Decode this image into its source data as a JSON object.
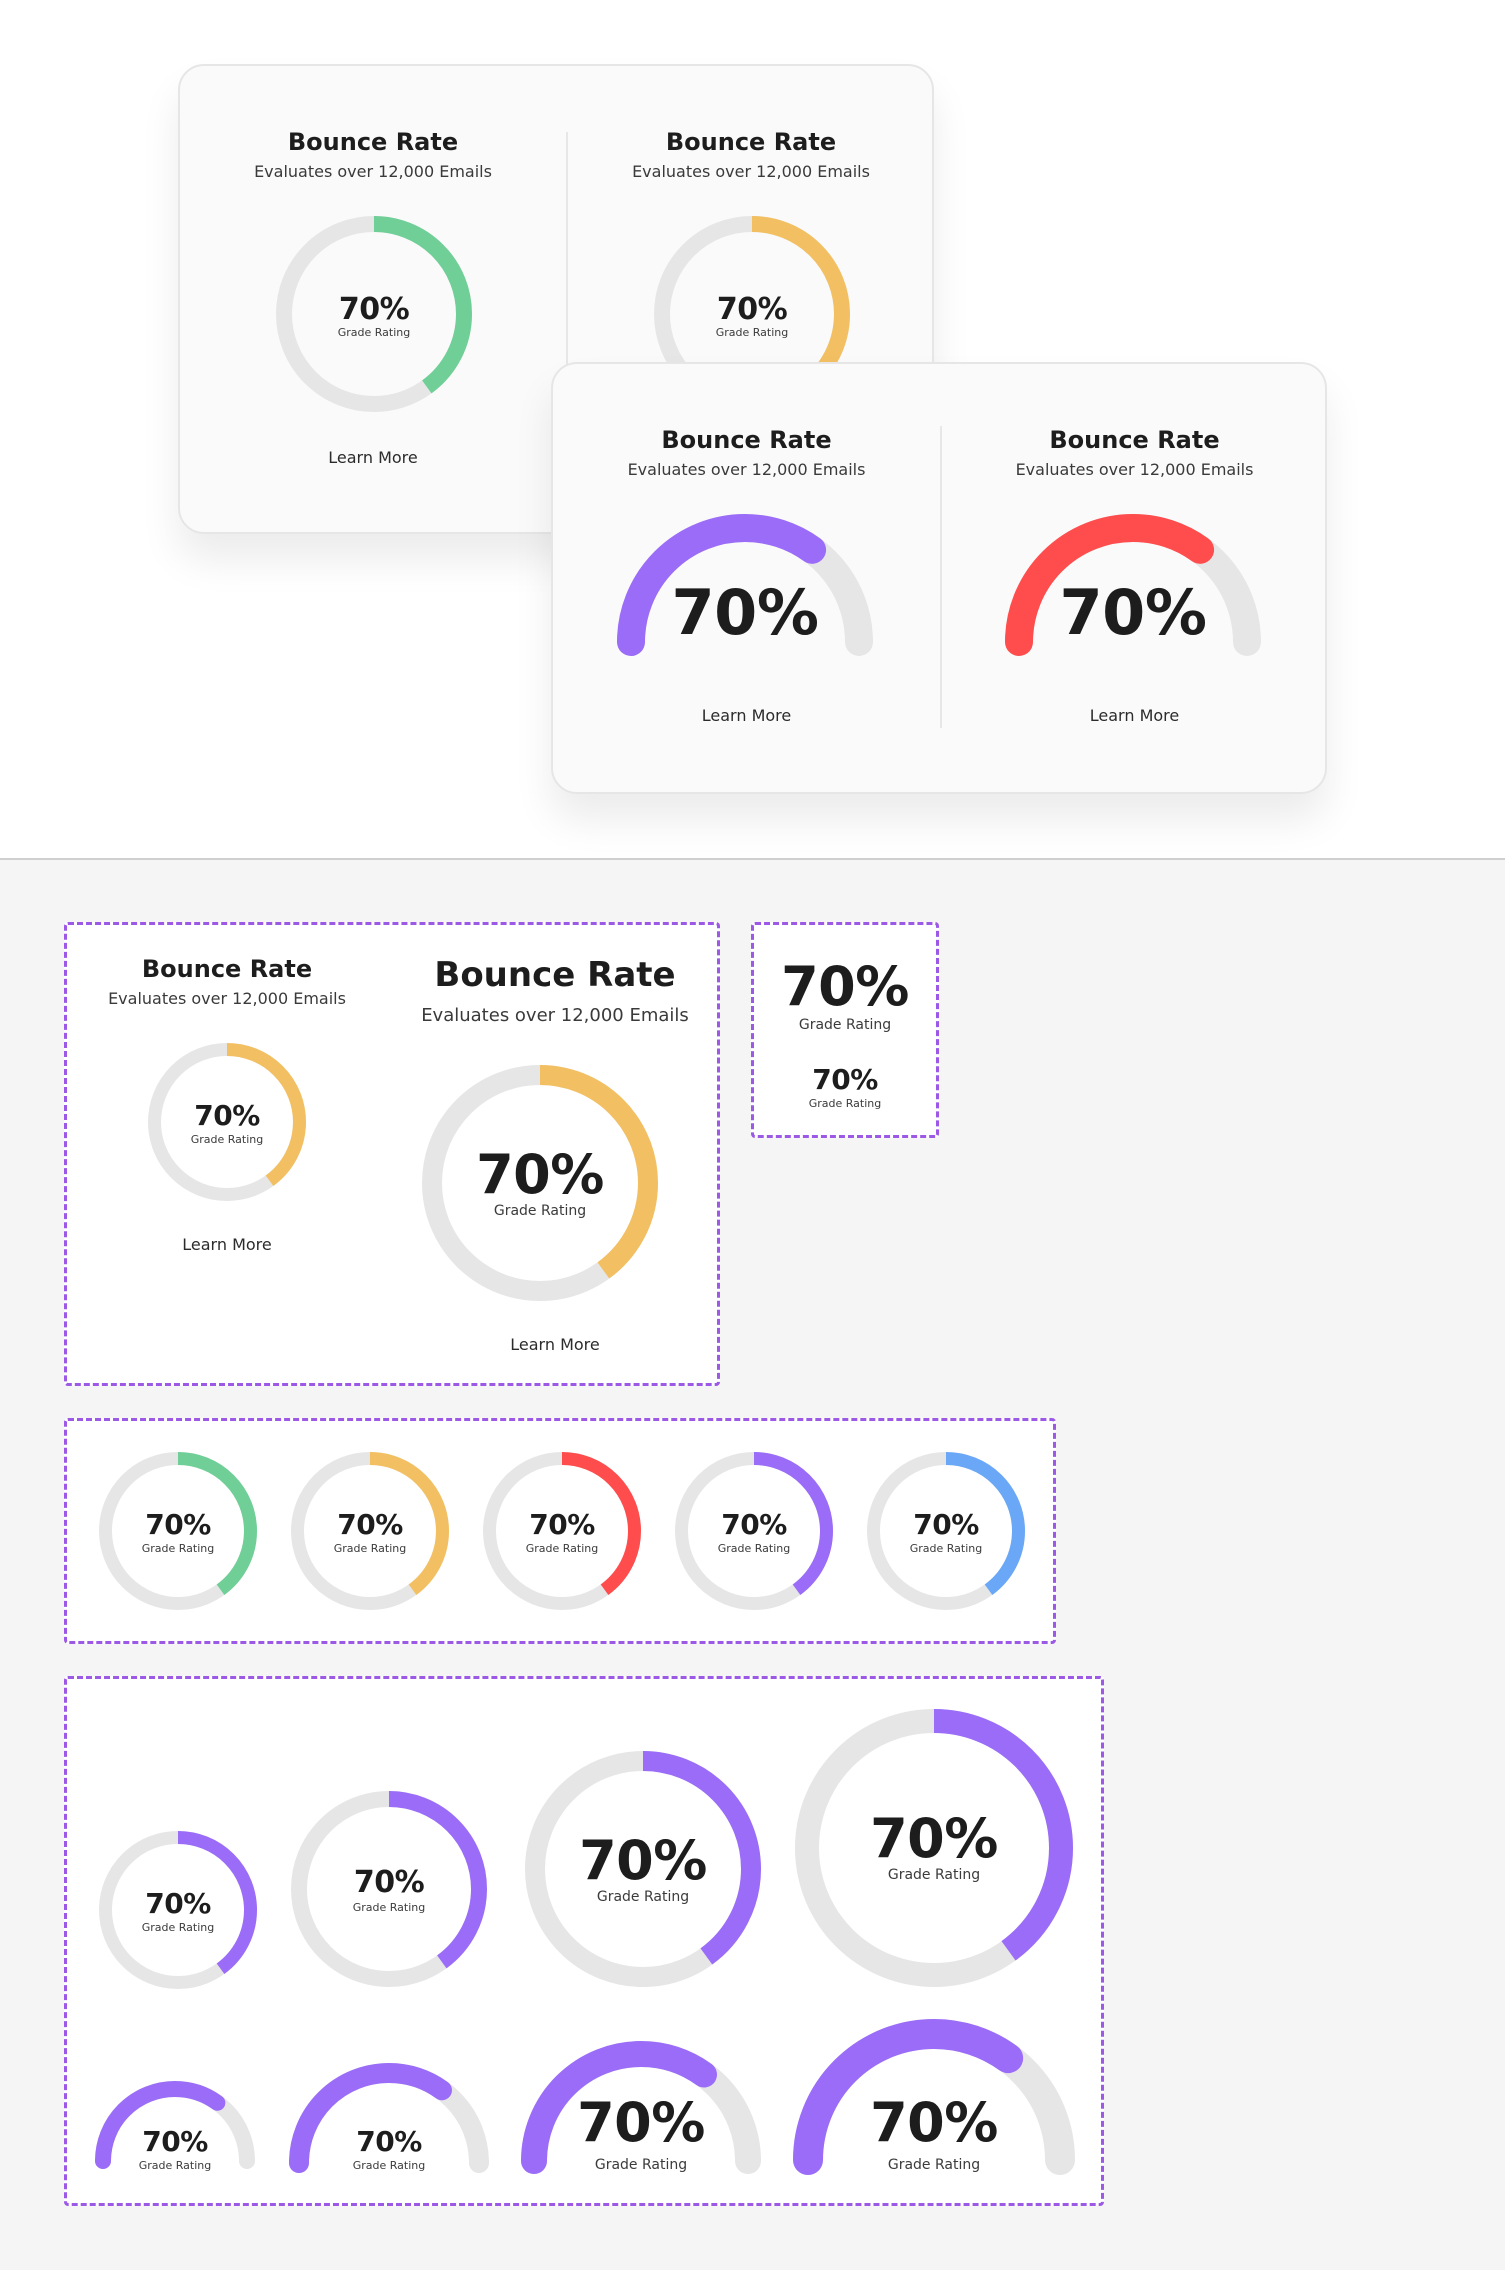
{
  "colors": {
    "track": "#e6e6e6",
    "green": "#6fcf97",
    "yellow": "#f2c063",
    "red": "#ff4d4d",
    "purple": "#9b6cf8",
    "blue": "#6aa8f7",
    "frame": "#9b59e6"
  },
  "card_top": {
    "left": {
      "title": "Bounce Rate",
      "subtitle": "Evaluates over 12,000 Emails",
      "value": "70%",
      "value_label": "Grade Rating",
      "link": "Learn More",
      "percent": 0.4
    },
    "right": {
      "title": "Bounce Rate",
      "subtitle": "Evaluates over 12,000 Emails",
      "value": "70%",
      "value_label": "Grade Rating",
      "percent": 0.4
    }
  },
  "card_front": {
    "left": {
      "title": "Bounce Rate",
      "subtitle": "Evaluates over 12,000 Emails",
      "value": "70%",
      "link": "Learn More",
      "percent": 0.7
    },
    "right": {
      "title": "Bounce Rate",
      "subtitle": "Evaluates over 12,000 Emails",
      "value": "70%",
      "link": "Learn More",
      "percent": 0.7
    }
  },
  "frame_cards": {
    "small": {
      "title": "Bounce Rate",
      "subtitle": "Evaluates over 12,000 Emails",
      "value": "70%",
      "value_label": "Grade Rating",
      "link": "Learn More",
      "percent": 0.4
    },
    "large": {
      "title": "Bounce Rate",
      "subtitle": "Evaluates over 12,000 Emails",
      "value": "70%",
      "value_label": "Grade Rating",
      "link": "Learn More",
      "percent": 0.4
    }
  },
  "frame_values": {
    "large": {
      "value": "70%",
      "value_label": "Grade Rating"
    },
    "small": {
      "value": "70%",
      "value_label": "Grade Rating"
    }
  },
  "frame_colors": [
    {
      "value": "70%",
      "value_label": "Grade Rating",
      "color": "green",
      "percent": 0.4
    },
    {
      "value": "70%",
      "value_label": "Grade Rating",
      "color": "yellow",
      "percent": 0.4
    },
    {
      "value": "70%",
      "value_label": "Grade Rating",
      "color": "red",
      "percent": 0.4
    },
    {
      "value": "70%",
      "value_label": "Grade Rating",
      "color": "purple",
      "percent": 0.4
    },
    {
      "value": "70%",
      "value_label": "Grade Rating",
      "color": "blue",
      "percent": 0.4
    }
  ],
  "frame_sizes": {
    "rings": [
      {
        "value": "70%",
        "value_label": "Grade Rating",
        "percent": 0.4
      },
      {
        "value": "70%",
        "value_label": "Grade Rating",
        "percent": 0.4
      },
      {
        "value": "70%",
        "value_label": "Grade Rating",
        "percent": 0.4
      },
      {
        "value": "70%",
        "value_label": "Grade Rating",
        "percent": 0.4
      }
    ],
    "arcs": [
      {
        "value": "70%",
        "value_label": "Grade Rating",
        "percent": 0.7
      },
      {
        "value": "70%",
        "value_label": "Grade Rating",
        "percent": 0.7
      },
      {
        "value": "70%",
        "value_label": "Grade Rating",
        "percent": 0.7
      },
      {
        "value": "70%",
        "value_label": "Grade Rating",
        "percent": 0.7
      }
    ]
  }
}
